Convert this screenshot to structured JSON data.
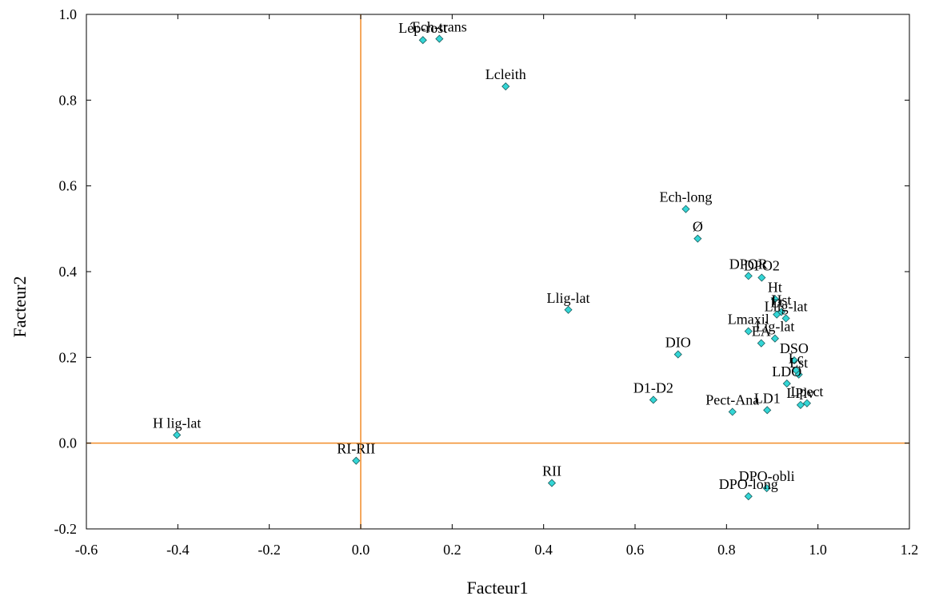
{
  "chart_data": {
    "type": "scatter",
    "title": "",
    "xlabel": "Facteur1",
    "ylabel": "Facteur2",
    "xlim": [
      -0.6,
      1.2
    ],
    "ylim": [
      -0.2,
      1.0
    ],
    "xticks": [
      "-0.6",
      "-0.4",
      "-0.2",
      "0.0",
      "0.2",
      "0.4",
      "0.6",
      "0.8",
      "1.0",
      "1.2"
    ],
    "yticks": [
      "-0.2",
      "0.0",
      "0.2",
      "0.4",
      "0.6",
      "0.8",
      "1.0"
    ],
    "xtick_values": [
      -0.6,
      -0.4,
      -0.2,
      0.0,
      0.2,
      0.4,
      0.6,
      0.8,
      1.0,
      1.2
    ],
    "ytick_values": [
      -0.2,
      0.0,
      0.2,
      0.4,
      0.6,
      0.8,
      1.0
    ],
    "grid": false,
    "reference_lines": {
      "x": 0.0,
      "y": 0.0,
      "color": "#f28c28"
    },
    "marker": {
      "shape": "diamond",
      "color": "#33d6d6",
      "edge": "#1a5f5f"
    },
    "points": [
      {
        "label": "Lép-rost",
        "x": 0.136,
        "y": 0.94
      },
      {
        "label": "Ech-trans",
        "x": 0.172,
        "y": 0.943
      },
      {
        "label": "Lcleith",
        "x": 0.317,
        "y": 0.832
      },
      {
        "label": "Ech-long",
        "x": 0.711,
        "y": 0.546
      },
      {
        "label": "Ø",
        "x": 0.737,
        "y": 0.477
      },
      {
        "label": "DPOR",
        "x": 0.848,
        "y": 0.39
      },
      {
        "label": "DPO2",
        "x": 0.877,
        "y": 0.386
      },
      {
        "label": "Ht",
        "x": 0.906,
        "y": 0.336
      },
      {
        "label": "Hst",
        "x": 0.92,
        "y": 0.306
      },
      {
        "label": "Lt",
        "x": 0.91,
        "y": 0.3
      },
      {
        "label": "Llig-lat",
        "x": 0.93,
        "y": 0.291
      },
      {
        "label": "Lmaxil",
        "x": 0.848,
        "y": 0.261
      },
      {
        "label": "EA",
        "x": 0.876,
        "y": 0.233
      },
      {
        "label": "Lig-lat",
        "x": 0.906,
        "y": 0.244
      },
      {
        "label": "DSO",
        "x": 0.948,
        "y": 0.193
      },
      {
        "label": "Lc",
        "x": 0.952,
        "y": 0.17
      },
      {
        "label": "Lst",
        "x": 0.958,
        "y": 0.16
      },
      {
        "label": "LDO",
        "x": 0.932,
        "y": 0.139
      },
      {
        "label": "LPlv",
        "x": 0.962,
        "y": 0.089
      },
      {
        "label": "Lpect",
        "x": 0.976,
        "y": 0.093
      },
      {
        "label": "LD1",
        "x": 0.889,
        "y": 0.077
      },
      {
        "label": "Pect-Ana",
        "x": 0.813,
        "y": 0.073
      },
      {
        "label": "Llig-lat",
        "x": 0.454,
        "y": 0.311
      },
      {
        "label": "DIO",
        "x": 0.694,
        "y": 0.207
      },
      {
        "label": "D1-D2",
        "x": 0.64,
        "y": 0.101
      },
      {
        "label": "H lig-lat",
        "x": -0.402,
        "y": 0.019
      },
      {
        "label": "RI-RII",
        "x": -0.01,
        "y": -0.041
      },
      {
        "label": "RII",
        "x": 0.418,
        "y": -0.093
      },
      {
        "label": "DPO-obli",
        "x": 0.888,
        "y": -0.105
      },
      {
        "label": "DPO-long",
        "x": 0.848,
        "y": -0.124
      }
    ]
  }
}
